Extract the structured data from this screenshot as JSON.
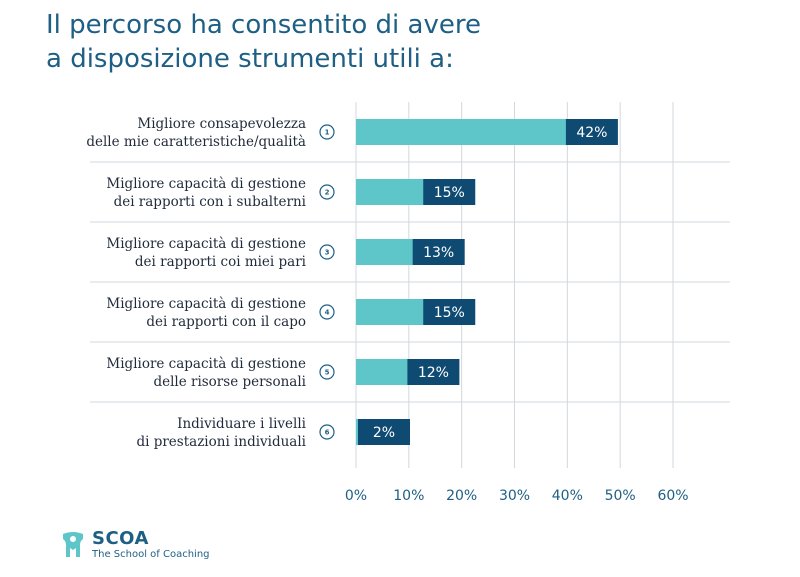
{
  "title": {
    "line1": "Il percorso ha consentito di avere",
    "line2": "a disposizione strumenti utili a:"
  },
  "colors": {
    "title": "#1e5f85",
    "bar": "#5ec6c9",
    "badge": "#0f4a72",
    "grid": "#d3d8dc"
  },
  "chart_data": {
    "type": "bar",
    "orientation": "horizontal",
    "title": "Il percorso ha consentito di avere a disposizione strumenti utili a:",
    "xlim": [
      0,
      60
    ],
    "x_ticks": [
      0,
      10,
      20,
      30,
      40,
      50,
      60
    ],
    "x_tick_labels": [
      "0%",
      "10%",
      "20%",
      "30%",
      "40%",
      "50%",
      "60%"
    ],
    "categories": [
      {
        "number": "1",
        "line1": "Migliore consapevolezza",
        "line2": "delle mie caratteristiche/qualità",
        "value": 42,
        "label": "42%"
      },
      {
        "number": "2",
        "line1": "Migliore capacità di gestione",
        "line2": "dei rapporti con i subalterni",
        "value": 15,
        "label": "15%"
      },
      {
        "number": "3",
        "line1": "Migliore capacità di gestione",
        "line2": "dei rapporti coi miei pari",
        "value": 13,
        "label": "13%"
      },
      {
        "number": "4",
        "line1": "Migliore capacità di gestione",
        "line2": "dei rapporti con il capo",
        "value": 15,
        "label": "15%"
      },
      {
        "number": "5",
        "line1": "Migliore capacità di gestione",
        "line2": "delle risorse personali",
        "value": 12,
        "label": "12%"
      },
      {
        "number": "6",
        "line1": "Individuare i livelli",
        "line2": "di prestazioni individuali",
        "value": 2,
        "label": "2%"
      }
    ]
  },
  "logo": {
    "name": "SCOA",
    "subtitle": "The School of Coaching"
  }
}
